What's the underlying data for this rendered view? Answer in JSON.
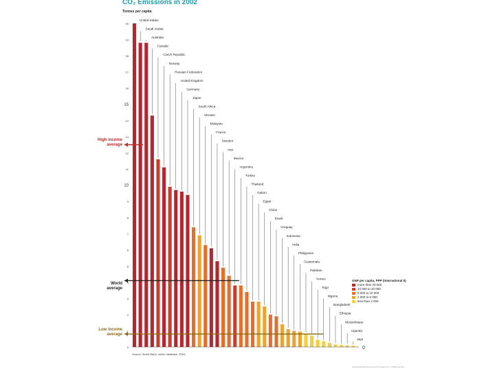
{
  "page": {
    "title": "CO₂ Emissions in 2002",
    "source": "Source:  World Bank, online database, 2004.",
    "credit": "United Nations Environment Programme / GRID-Arendal"
  },
  "chart_data": {
    "type": "bar",
    "title": "CO₂ Emissions in 2002",
    "ylabel": "Tonnes per capita",
    "xlabel": "",
    "ylim": [
      0,
      20.5
    ],
    "yticks": [
      {
        "v": 20,
        "label": "20"
      },
      {
        "v": 19,
        "label": "19"
      },
      {
        "v": 18,
        "label": "18"
      },
      {
        "v": 17,
        "label": "17"
      },
      {
        "v": 16,
        "label": "16"
      },
      {
        "v": 15,
        "label": "15"
      },
      {
        "v": 14,
        "label": "14"
      },
      {
        "v": 13,
        "label": "13"
      },
      {
        "v": 12,
        "label": "12"
      },
      {
        "v": 11,
        "label": "11"
      },
      {
        "v": 10,
        "label": "10"
      },
      {
        "v": 9,
        "label": "9"
      },
      {
        "v": 8,
        "label": "8"
      },
      {
        "v": 7,
        "label": "7"
      },
      {
        "v": 6,
        "label": "6"
      },
      {
        "v": 5,
        "label": "5"
      },
      {
        "v": 4,
        "label": "4"
      },
      {
        "v": 3,
        "label": "3"
      },
      {
        "v": 2,
        "label": "2"
      },
      {
        "v": 1,
        "label": "1"
      },
      {
        "v": 0,
        "label": "0"
      }
    ],
    "right_axis_label": "0",
    "legend": {
      "title": "GNP per capita, PPP (international $)",
      "items": [
        {
          "label": "more than 20 000",
          "color": "#b5262f"
        },
        {
          "label": "10 000 to 20 000",
          "color": "#cf3b2b"
        },
        {
          "label": "5 000 to 10 000",
          "color": "#e4702c"
        },
        {
          "label": "2 000 to 5 000",
          "color": "#eda32e"
        },
        {
          "label": "less than 2 000",
          "color": "#f5cf3a"
        }
      ]
    },
    "annotations": [
      {
        "label": "High income average",
        "value": 12.5,
        "color": "#c0282d"
      },
      {
        "label": "World average",
        "value": 4.1,
        "color": "#222222"
      },
      {
        "label": "Low income average",
        "value": 0.8,
        "color": "#8b6a10"
      }
    ],
    "bars": [
      {
        "label": "United States",
        "value": 20.0,
        "group": 0
      },
      {
        "label": "Saudi Arabia",
        "value": 18.8,
        "group": 0
      },
      {
        "label": "Australia",
        "value": 18.8,
        "group": 0
      },
      {
        "label": "Canada",
        "value": 14.3,
        "group": 0
      },
      {
        "label": "Czech Republic",
        "value": 11.6,
        "group": 1
      },
      {
        "label": "Norway",
        "value": 11.1,
        "group": 0
      },
      {
        "label": "Russian Federation",
        "value": 9.9,
        "group": 1
      },
      {
        "label": "United Kingdom",
        "value": 9.7,
        "group": 0
      },
      {
        "label": "Germany",
        "value": 9.6,
        "group": 0
      },
      {
        "label": "Japan",
        "value": 9.4,
        "group": 0
      },
      {
        "label": "South Africa",
        "value": 7.4,
        "group": 2
      },
      {
        "label": "Ukraine",
        "value": 6.9,
        "group": 3
      },
      {
        "label": "Malaysia",
        "value": 6.3,
        "group": 2
      },
      {
        "label": "France",
        "value": 6.1,
        "group": 0
      },
      {
        "label": "Sweden",
        "value": 5.3,
        "group": 0
      },
      {
        "label": "Iran",
        "value": 4.9,
        "group": 2
      },
      {
        "label": "Mexico",
        "value": 4.4,
        "group": 2
      },
      {
        "label": "Argentina",
        "value": 3.8,
        "group": 1
      },
      {
        "label": "Turkey",
        "value": 3.8,
        "group": 2
      },
      {
        "label": "Thailand",
        "value": 3.4,
        "group": 2
      },
      {
        "label": "Gabon",
        "value": 2.8,
        "group": 2
      },
      {
        "label": "Egypt",
        "value": 2.8,
        "group": 3
      },
      {
        "label": "China",
        "value": 2.5,
        "group": 3
      },
      {
        "label": "Brazil",
        "value": 2.0,
        "group": 2
      },
      {
        "label": "Uruguay",
        "value": 1.9,
        "group": 2
      },
      {
        "label": "Indonesia",
        "value": 1.4,
        "group": 3
      },
      {
        "label": "India",
        "value": 1.1,
        "group": 3
      },
      {
        "label": "Philippines",
        "value": 1.0,
        "group": 3
      },
      {
        "label": "Guatemala",
        "value": 0.95,
        "group": 3
      },
      {
        "label": "Pakistan",
        "value": 0.8,
        "group": 4
      },
      {
        "label": "Yemen",
        "value": 0.7,
        "group": 4
      },
      {
        "label": "Togo",
        "value": 0.45,
        "group": 4
      },
      {
        "label": "Nigeria",
        "value": 0.35,
        "group": 4
      },
      {
        "label": "Bangladesh",
        "value": 0.25,
        "group": 4
      },
      {
        "label": "Ethiopia",
        "value": 0.15,
        "group": 4
      },
      {
        "label": "Mozambique",
        "value": 0.12,
        "group": 4
      },
      {
        "label": "Uganda",
        "value": 0.1,
        "group": 4
      },
      {
        "label": "Mali",
        "value": 0.08,
        "group": 4
      }
    ]
  }
}
